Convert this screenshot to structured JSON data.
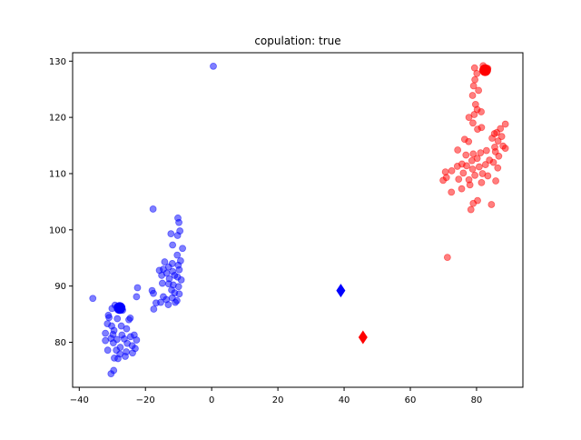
{
  "chart_data": {
    "type": "scatter",
    "title": "copulation:  true",
    "xlabel": "",
    "ylabel": "",
    "xlim": [
      -42,
      94
    ],
    "ylim": [
      72,
      131.5
    ],
    "xticks": [
      -40,
      -20,
      0,
      20,
      40,
      60,
      80
    ],
    "yticks": [
      80,
      90,
      100,
      110,
      120,
      130
    ],
    "grid": false,
    "legend": "none",
    "series": [
      {
        "color": "#0000ff",
        "alpha": 0.5,
        "marker": "circle",
        "points": [
          [
            0.5,
            129.1
          ],
          [
            -17.7,
            103.7
          ],
          [
            -10.2,
            102.1
          ],
          [
            -9.9,
            101.3
          ],
          [
            -9.6,
            99.8
          ],
          [
            -12.3,
            99.3
          ],
          [
            -10.3,
            99.0
          ],
          [
            -11.8,
            97.3
          ],
          [
            -8.8,
            96.7
          ],
          [
            -10.4,
            95.5
          ],
          [
            -9.4,
            94.5
          ],
          [
            -14.2,
            94.3
          ],
          [
            -11.9,
            94.0
          ],
          [
            -10.1,
            93.7
          ],
          [
            -13.0,
            93.4
          ],
          [
            -9.8,
            92.9
          ],
          [
            -15.8,
            92.8
          ],
          [
            -14.6,
            93.0
          ],
          [
            -11.8,
            92.6
          ],
          [
            -13.6,
            92.3
          ],
          [
            -11.2,
            91.9
          ],
          [
            -15.1,
            91.9
          ],
          [
            -10.3,
            91.6
          ],
          [
            -12.8,
            91.3
          ],
          [
            -9.2,
            91.1
          ],
          [
            -14.9,
            90.5
          ],
          [
            -11.6,
            90.2
          ],
          [
            -13.0,
            90.4
          ],
          [
            -10.0,
            89.9
          ],
          [
            -12.1,
            89.3
          ],
          [
            -11.2,
            88.8
          ],
          [
            -9.8,
            88.6
          ],
          [
            -14.6,
            88.1
          ],
          [
            -11.9,
            87.9
          ],
          [
            -13.7,
            87.6
          ],
          [
            -10.5,
            87.4
          ],
          [
            -11.0,
            87.1
          ],
          [
            -16.8,
            87.0
          ],
          [
            -15.4,
            87.1
          ],
          [
            -13.1,
            86.7
          ],
          [
            -17.5,
            85.9
          ],
          [
            -18.0,
            89.2
          ],
          [
            -17.6,
            88.7
          ],
          [
            -22.4,
            89.7
          ],
          [
            -22.7,
            88.1
          ],
          [
            -35.9,
            87.8
          ],
          [
            -29.2,
            86.6
          ],
          [
            -28.5,
            86.3
          ],
          [
            -27.5,
            86.1
          ],
          [
            -30.1,
            86.0
          ],
          [
            -26.9,
            85.7
          ],
          [
            -31.2,
            84.8
          ],
          [
            -31.0,
            84.4
          ],
          [
            -28.5,
            84.2
          ],
          [
            -24.6,
            84.3
          ],
          [
            -25.0,
            84.0
          ],
          [
            -31.5,
            83.3
          ],
          [
            -30.2,
            82.9
          ],
          [
            -27.3,
            82.9
          ],
          [
            -29.5,
            82.1
          ],
          [
            -25.7,
            82.4
          ],
          [
            -32.1,
            81.6
          ],
          [
            -29.8,
            81.4
          ],
          [
            -27.1,
            81.3
          ],
          [
            -23.4,
            81.3
          ],
          [
            -24.5,
            81.0
          ],
          [
            -30.4,
            80.7
          ],
          [
            -28.6,
            80.5
          ],
          [
            -26.4,
            80.6
          ],
          [
            -22.7,
            80.4
          ],
          [
            -32.1,
            80.3
          ],
          [
            -29.7,
            79.9
          ],
          [
            -25.5,
            79.8
          ],
          [
            -24.0,
            79.4
          ],
          [
            -27.6,
            79.1
          ],
          [
            -23.1,
            78.9
          ],
          [
            -28.8,
            78.6
          ],
          [
            -25.8,
            78.3
          ],
          [
            -31.4,
            78.6
          ],
          [
            -23.9,
            78.1
          ],
          [
            -27.7,
            77.9
          ],
          [
            -26.1,
            77.5
          ],
          [
            -28.3,
            77.1
          ],
          [
            -29.4,
            77.2
          ],
          [
            -29.6,
            75.0
          ],
          [
            -30.4,
            74.4
          ]
        ]
      },
      {
        "color": "#ff0000",
        "alpha": 0.5,
        "marker": "circle",
        "points": [
          [
            82.0,
            129.2
          ],
          [
            79.4,
            128.8
          ],
          [
            83.4,
            128.7
          ],
          [
            80.1,
            127.8
          ],
          [
            79.5,
            126.7
          ],
          [
            79.1,
            125.6
          ],
          [
            80.6,
            124.8
          ],
          [
            78.8,
            123.9
          ],
          [
            79.7,
            122.3
          ],
          [
            80.2,
            121.4
          ],
          [
            81.4,
            121.0
          ],
          [
            79.3,
            120.5
          ],
          [
            77.7,
            120.0
          ],
          [
            78.9,
            119.0
          ],
          [
            88.7,
            118.8
          ],
          [
            81.5,
            118.2
          ],
          [
            80.3,
            117.9
          ],
          [
            87.2,
            118.0
          ],
          [
            86.1,
            117.3
          ],
          [
            85.4,
            117.1
          ],
          [
            87.6,
            116.6
          ],
          [
            84.7,
            116.3
          ],
          [
            76.4,
            116.1
          ],
          [
            77.6,
            115.7
          ],
          [
            86.5,
            115.8
          ],
          [
            88.0,
            114.9
          ],
          [
            85.5,
            114.7
          ],
          [
            88.7,
            114.5
          ],
          [
            74.3,
            114.2
          ],
          [
            83.0,
            114.1
          ],
          [
            85.7,
            113.9
          ],
          [
            79.0,
            113.5
          ],
          [
            81.2,
            113.7
          ],
          [
            76.8,
            113.3
          ],
          [
            86.7,
            113.1
          ],
          [
            80.2,
            112.7
          ],
          [
            83.9,
            112.4
          ],
          [
            78.6,
            112.3
          ],
          [
            85.1,
            112.0
          ],
          [
            75.6,
            111.7
          ],
          [
            82.7,
            111.6
          ],
          [
            77.0,
            111.4
          ],
          [
            80.8,
            111.2
          ],
          [
            74.2,
            111.3
          ],
          [
            86.4,
            111.0
          ],
          [
            78.8,
            110.8
          ],
          [
            72.5,
            110.5
          ],
          [
            76.0,
            110.1
          ],
          [
            81.8,
            110.0
          ],
          [
            70.6,
            110.3
          ],
          [
            79.5,
            109.7
          ],
          [
            83.4,
            109.6
          ],
          [
            70.9,
            109.3
          ],
          [
            74.6,
            109.0
          ],
          [
            77.7,
            108.9
          ],
          [
            85.8,
            108.7
          ],
          [
            69.9,
            108.8
          ],
          [
            81.5,
            108.4
          ],
          [
            78.0,
            108.0
          ],
          [
            75.5,
            107.3
          ],
          [
            72.4,
            106.7
          ],
          [
            80.3,
            105.2
          ],
          [
            79.0,
            104.7
          ],
          [
            84.5,
            104.5
          ],
          [
            78.3,
            103.6
          ],
          [
            71.2,
            95.1
          ]
        ]
      },
      {
        "color": "#0000ff",
        "alpha": 1,
        "marker": "circle-large",
        "points": [
          [
            -27.8,
            86.1
          ]
        ]
      },
      {
        "color": "#ff0000",
        "alpha": 1,
        "marker": "circle-large",
        "points": [
          [
            82.6,
            128.4
          ]
        ]
      },
      {
        "color": "#0000ff",
        "alpha": 1,
        "marker": "diamond",
        "points": [
          [
            39.0,
            89.2
          ]
        ]
      },
      {
        "color": "#ff0000",
        "alpha": 1,
        "marker": "diamond",
        "points": [
          [
            45.7,
            80.9
          ]
        ]
      }
    ]
  }
}
